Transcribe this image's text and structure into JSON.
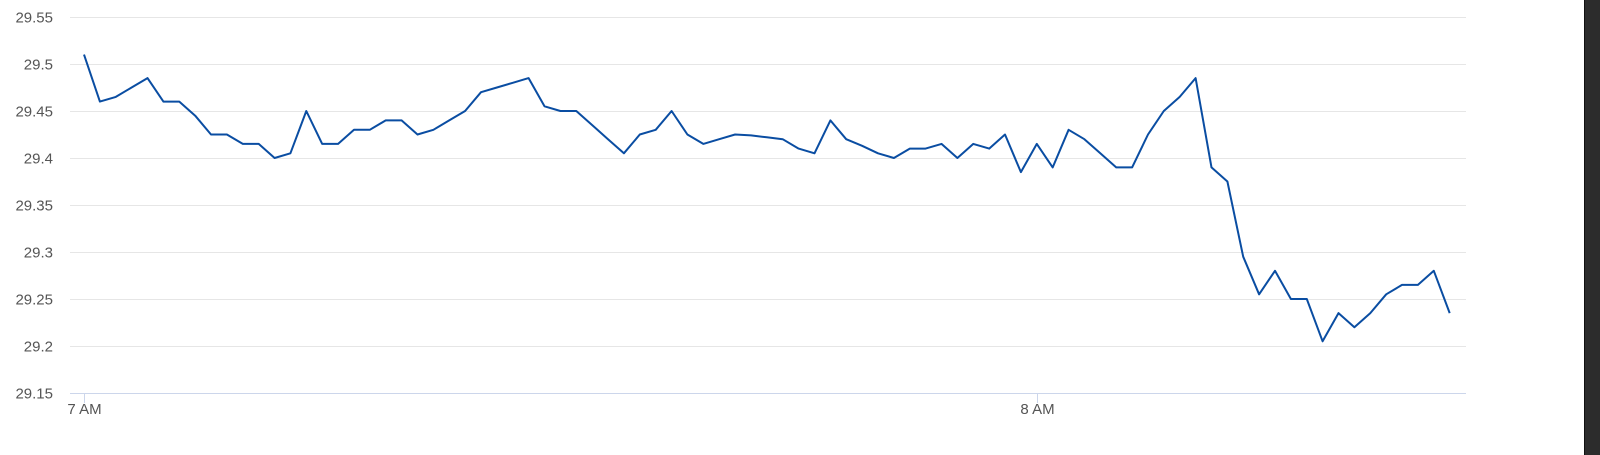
{
  "chart_data": {
    "type": "line",
    "title": "",
    "xlabel": "",
    "ylabel": "",
    "ylim": [
      29.15,
      29.55
    ],
    "y_ticks": [
      "29.55",
      "29.5",
      "29.45",
      "29.4",
      "29.35",
      "29.3",
      "29.25",
      "29.2",
      "29.15"
    ],
    "x_ticks": [
      {
        "time": "7:00",
        "label": "7 AM"
      },
      {
        "time": "8:00",
        "label": "8 AM"
      }
    ],
    "grid": true,
    "legend": "none",
    "line_color": "#0a4da2",
    "series": [
      {
        "x": [
          "7:00",
          "7:01",
          "7:02",
          "7:03",
          "7:04",
          "7:05",
          "7:06",
          "7:07",
          "7:08",
          "7:09",
          "7:10",
          "7:11",
          "7:12",
          "7:13",
          "7:14",
          "7:15",
          "7:16",
          "7:17",
          "7:18",
          "7:19",
          "7:20",
          "7:21",
          "7:22",
          "7:23",
          "7:24",
          "7:25",
          "7:26",
          "7:27",
          "7:28",
          "7:29",
          "7:30",
          "7:31",
          "7:32",
          "7:33",
          "7:34",
          "7:35",
          "7:36",
          "7:37",
          "7:38",
          "7:39",
          "7:40",
          "7:41",
          "7:42",
          "7:43",
          "7:44",
          "7:45",
          "7:46",
          "7:47",
          "7:48",
          "7:49",
          "7:50",
          "7:51",
          "7:52",
          "7:53",
          "7:54",
          "7:55",
          "7:56",
          "7:57",
          "7:58",
          "7:59",
          "8:00",
          "8:01",
          "8:02",
          "8:03",
          "8:04",
          "8:05",
          "8:06",
          "8:07",
          "8:08",
          "8:09",
          "8:10",
          "8:11",
          "8:12",
          "8:13",
          "8:14",
          "8:15",
          "8:16",
          "8:17",
          "8:18",
          "8:19",
          "8:20",
          "8:21",
          "8:22",
          "8:23",
          "8:24",
          "8:25",
          "8:26"
        ],
        "values": [
          29.51,
          29.46,
          29.465,
          29.475,
          29.485,
          29.46,
          29.46,
          29.445,
          29.425,
          29.425,
          29.415,
          29.415,
          29.4,
          29.405,
          29.45,
          29.415,
          29.415,
          29.43,
          29.43,
          29.44,
          29.44,
          29.425,
          29.43,
          29.44,
          29.45,
          29.47,
          29.475,
          29.48,
          29.485,
          29.455,
          29.45,
          29.45,
          29.435,
          29.42,
          29.405,
          29.425,
          29.43,
          29.45,
          29.425,
          29.415,
          29.42,
          29.425,
          29.424,
          29.422,
          29.42,
          29.41,
          29.405,
          29.44,
          29.42,
          29.413,
          29.405,
          29.4,
          29.41,
          29.41,
          29.415,
          29.4,
          29.415,
          29.41,
          29.425,
          29.385,
          29.415,
          29.39,
          29.43,
          29.42,
          29.405,
          29.39,
          29.39,
          29.425,
          29.45,
          29.465,
          29.485,
          29.39,
          29.375,
          29.295,
          29.255,
          29.28,
          29.25,
          29.25,
          29.205,
          29.235,
          29.22,
          29.235,
          29.255,
          29.265,
          29.265,
          29.28,
          29.235
        ]
      }
    ]
  }
}
